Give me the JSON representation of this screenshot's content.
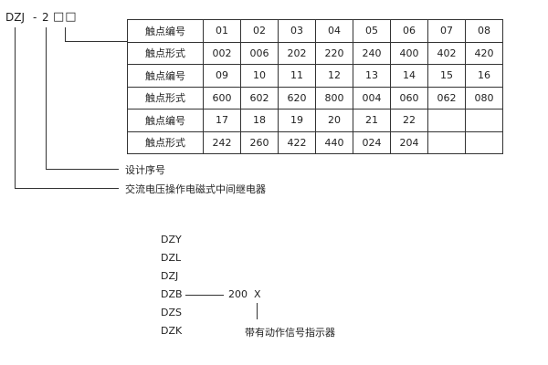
{
  "model": {
    "prefix": "DZJ",
    "dash": "-",
    "digit": "2",
    "boxes": "□□"
  },
  "table": {
    "rows": [
      [
        "触点编号",
        "01",
        "02",
        "03",
        "04",
        "05",
        "06",
        "07",
        "08"
      ],
      [
        "触点形式",
        "002",
        "006",
        "202",
        "220",
        "240",
        "400",
        "402",
        "420"
      ],
      [
        "触点编号",
        "09",
        "10",
        "11",
        "12",
        "13",
        "14",
        "15",
        "16"
      ],
      [
        "触点形式",
        "600",
        "602",
        "620",
        "800",
        "004",
        "060",
        "062",
        "080"
      ],
      [
        "触点编号",
        "17",
        "18",
        "19",
        "20",
        "21",
        "22",
        "",
        ""
      ],
      [
        "触点形式",
        "242",
        "260",
        "422",
        "440",
        "024",
        "204",
        "",
        ""
      ]
    ]
  },
  "labels": {
    "design_no": "设计序号",
    "relay_type": "交流电压操作电磁式中间继电器"
  },
  "series": {
    "items": [
      "DZY",
      "DZL",
      "DZJ",
      "DZB",
      "DZS",
      "DZK"
    ],
    "code": "200",
    "suffix": "X",
    "suffix_note": "带有动作信号指示器"
  }
}
